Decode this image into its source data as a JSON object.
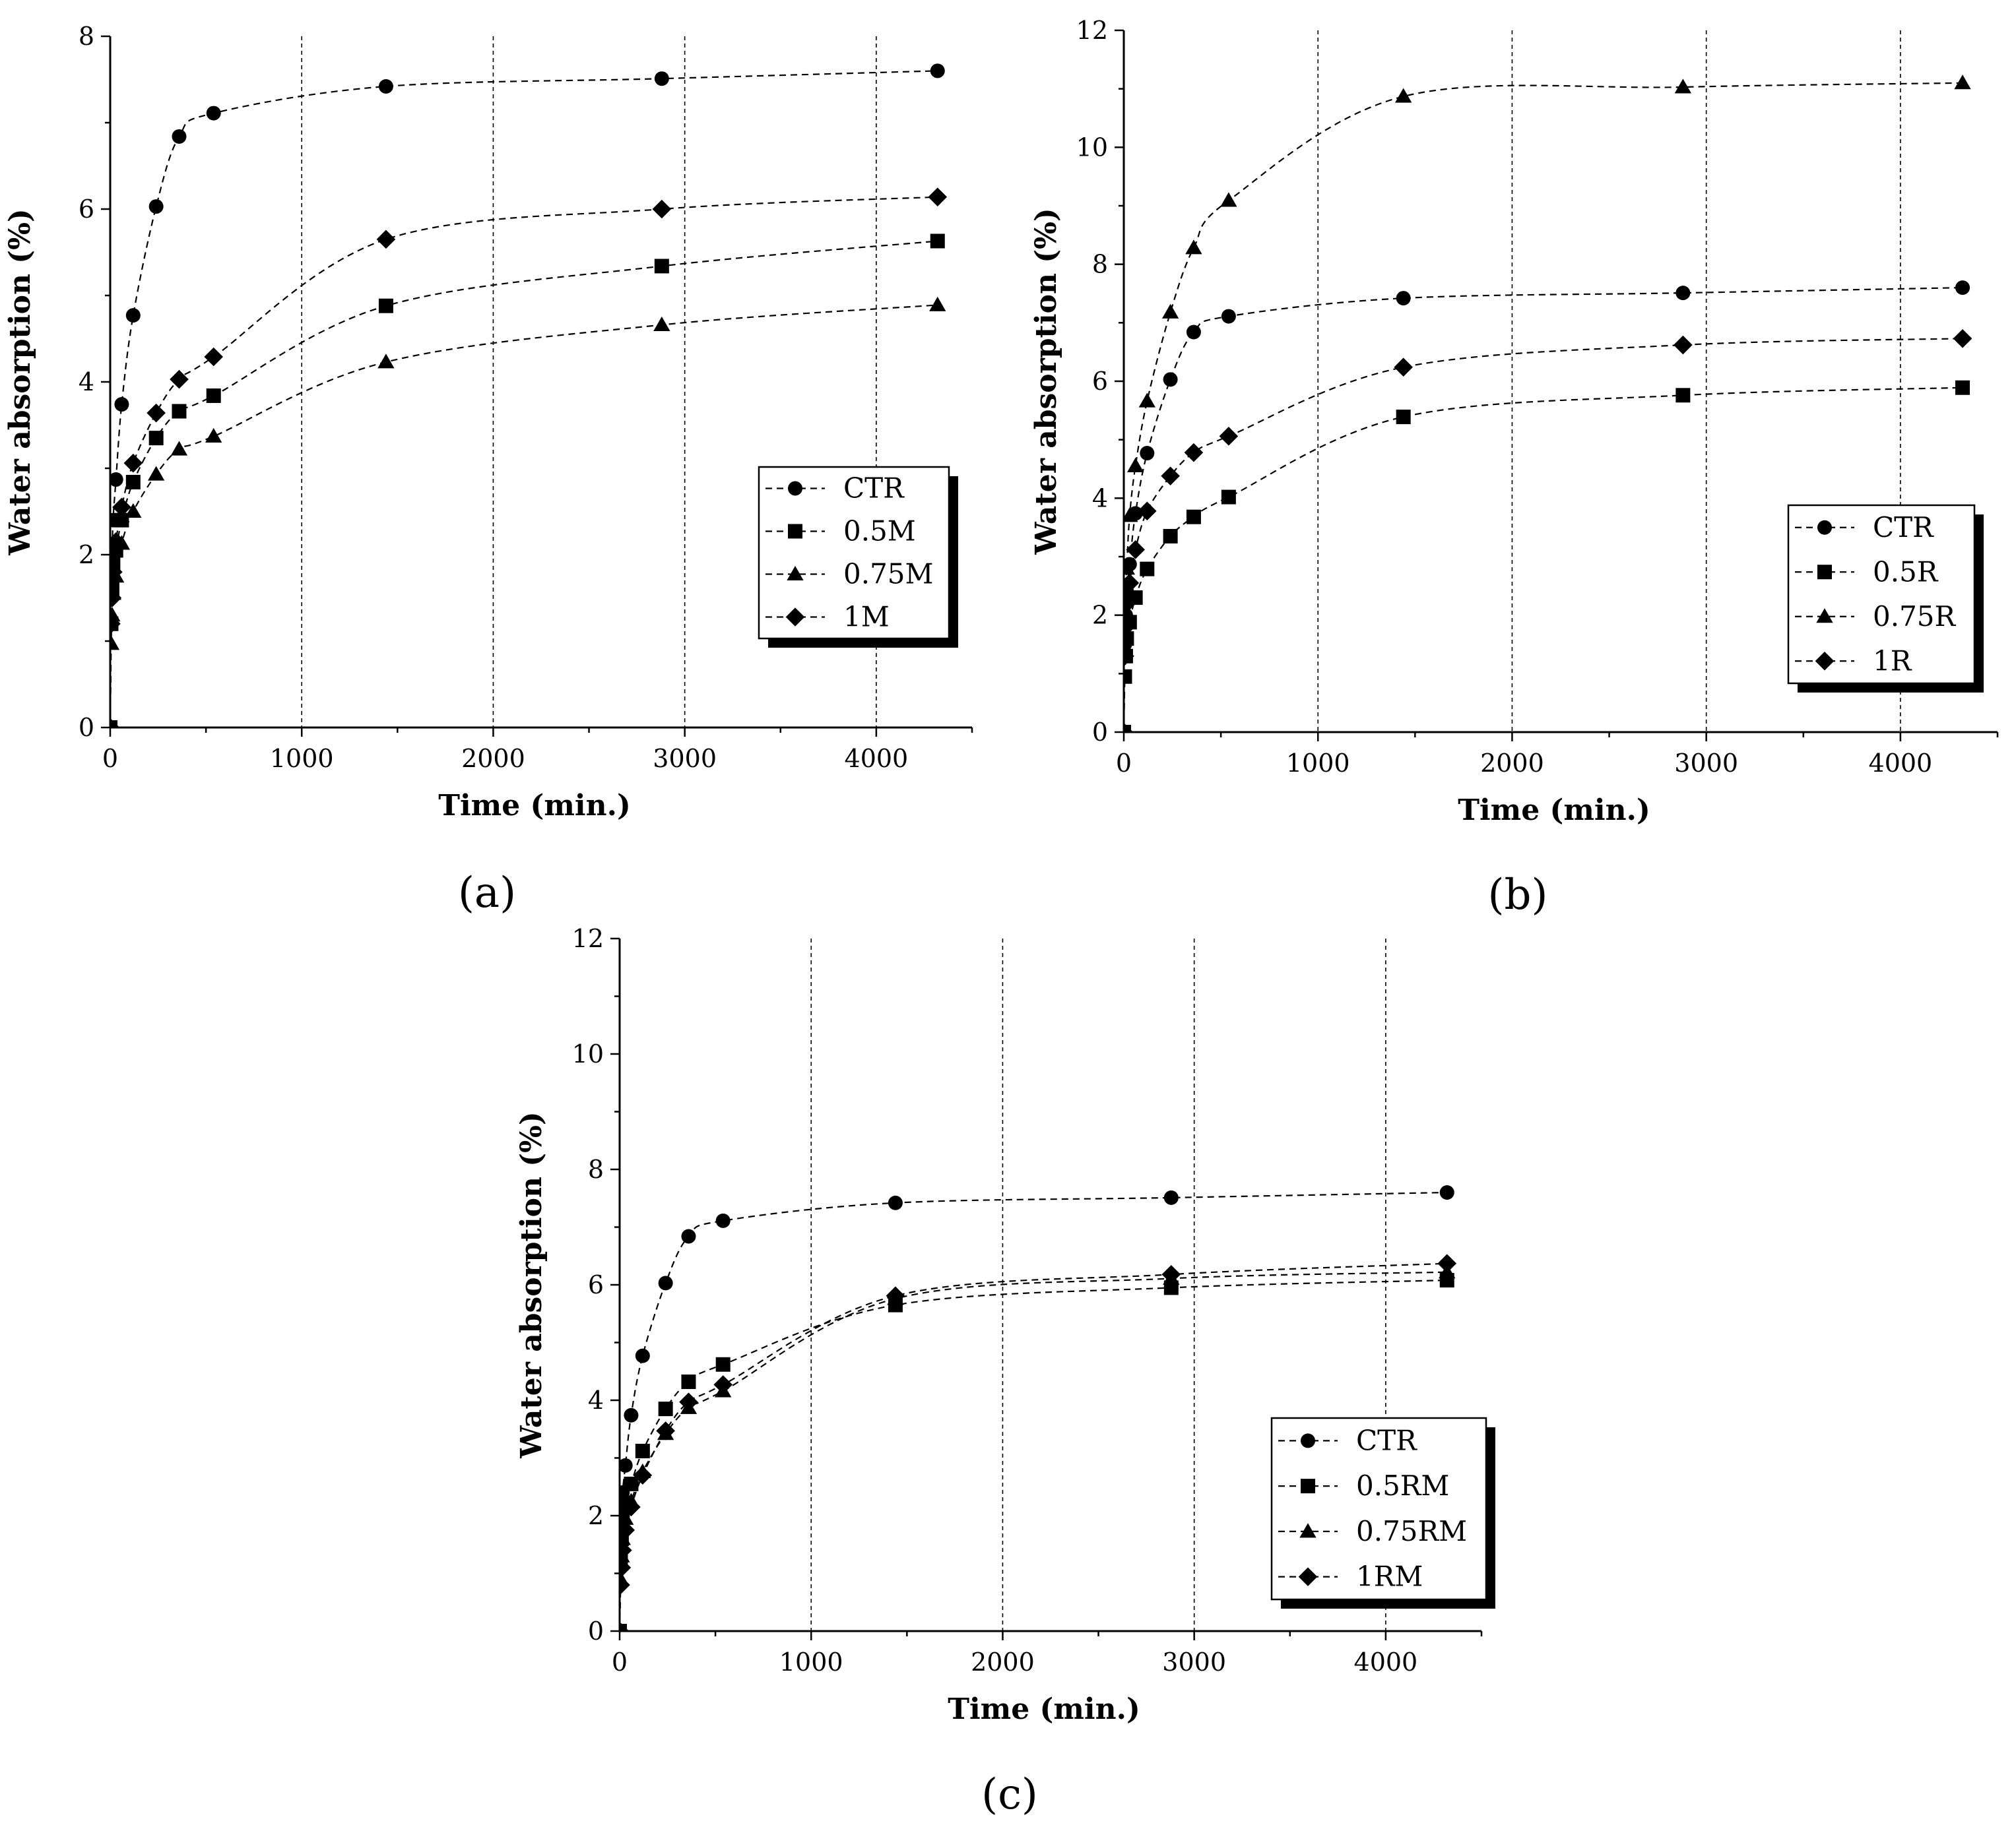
{
  "chart_data": [
    {
      "type": "line",
      "panel_label": "(a)",
      "xlabel": "Time (min.)",
      "ylabel": "Water absorption (%)",
      "xlim": [
        0,
        4500
      ],
      "ylim": [
        0,
        8
      ],
      "xticks": [
        "0",
        "1000",
        "2000",
        "3000",
        "4000"
      ],
      "yticks": [
        "0",
        "2",
        "4",
        "6",
        "8"
      ],
      "ytick_values": [
        0,
        2,
        4,
        6,
        8
      ],
      "grid": "vertical dashed at 1000, 2000, 3000, 4000",
      "legend_position": "lower-right",
      "x": [
        0,
        5,
        10,
        15,
        30,
        60,
        120,
        240,
        360,
        540,
        1440,
        2880,
        4320
      ],
      "series": [
        {
          "name": "CTR",
          "marker": "circle",
          "values": [
            0,
            1.5,
            2.0,
            2.4,
            2.87,
            3.74,
            4.77,
            6.03,
            6.84,
            7.11,
            7.42,
            7.51,
            7.6
          ]
        },
        {
          "name": "0.5M",
          "marker": "square",
          "values": [
            0,
            1.2,
            1.6,
            1.9,
            2.05,
            2.4,
            2.84,
            3.35,
            3.66,
            3.84,
            4.88,
            5.34,
            5.63
          ]
        },
        {
          "name": "0.75M",
          "marker": "triangle",
          "values": [
            0,
            0.97,
            1.3,
            1.55,
            1.75,
            2.13,
            2.5,
            2.93,
            3.22,
            3.37,
            4.23,
            4.66,
            4.89
          ]
        },
        {
          "name": "1M",
          "marker": "diamond",
          "values": [
            0,
            1.2,
            1.5,
            1.8,
            2.15,
            2.55,
            3.06,
            3.64,
            4.03,
            4.29,
            5.65,
            6.0,
            6.14
          ]
        }
      ]
    },
    {
      "type": "line",
      "panel_label": "(b)",
      "xlabel": "Time (min.)",
      "ylabel": "Water absorption (%)",
      "xlim": [
        0,
        4500
      ],
      "ylim": [
        0,
        12
      ],
      "xticks": [
        "0",
        "1000",
        "2000",
        "3000",
        "4000"
      ],
      "yticks": [
        "0",
        "2",
        "4",
        "6",
        "8",
        "10",
        "12"
      ],
      "ytick_values": [
        0,
        2,
        4,
        6,
        8,
        10,
        12
      ],
      "grid": "vertical dashed at 1000, 2000, 3000, 4000",
      "legend_position": "lower-right",
      "x": [
        0,
        5,
        10,
        15,
        30,
        60,
        120,
        240,
        360,
        540,
        1440,
        2880,
        4320
      ],
      "series": [
        {
          "name": "CTR",
          "marker": "circle",
          "values": [
            0,
            1.5,
            2.0,
            2.4,
            2.87,
            3.74,
            4.77,
            6.03,
            6.84,
            7.11,
            7.42,
            7.51,
            7.6
          ]
        },
        {
          "name": "0.5R",
          "marker": "square",
          "values": [
            0,
            0.95,
            1.3,
            1.6,
            1.88,
            2.3,
            2.79,
            3.35,
            3.68,
            4.02,
            5.39,
            5.76,
            5.89
          ]
        },
        {
          "name": "0.75R",
          "marker": "triangle",
          "values": [
            0,
            1.6,
            2.3,
            2.8,
            3.7,
            4.55,
            5.66,
            7.18,
            8.28,
            9.09,
            10.87,
            11.03,
            11.1
          ]
        },
        {
          "name": "1R",
          "marker": "diamond",
          "values": [
            0,
            1.3,
            1.8,
            2.2,
            2.55,
            3.12,
            3.78,
            4.38,
            4.78,
            5.06,
            6.24,
            6.62,
            6.73
          ]
        }
      ]
    },
    {
      "type": "line",
      "panel_label": "(c)",
      "xlabel": "Time (min.)",
      "ylabel": "Water absorption (%)",
      "xlim": [
        0,
        4500
      ],
      "ylim": [
        0,
        12
      ],
      "xticks": [
        "0",
        "1000",
        "2000",
        "3000",
        "4000"
      ],
      "yticks": [
        "0",
        "2",
        "4",
        "6",
        "8",
        "10",
        "12"
      ],
      "ytick_values": [
        0,
        2,
        4,
        6,
        8,
        10,
        12
      ],
      "grid": "vertical dashed at 1000, 2000, 3000, 4000",
      "legend_position": "lower-right",
      "x": [
        0,
        5,
        10,
        15,
        30,
        60,
        120,
        240,
        360,
        540,
        1440,
        2880,
        4320
      ],
      "series": [
        {
          "name": "CTR",
          "marker": "circle",
          "values": [
            0,
            1.5,
            2.0,
            2.4,
            2.87,
            3.74,
            4.77,
            6.03,
            6.84,
            7.11,
            7.42,
            7.51,
            7.6
          ]
        },
        {
          "name": "0.5RM",
          "marker": "square",
          "values": [
            0,
            1.2,
            1.6,
            1.95,
            2.22,
            2.55,
            3.12,
            3.85,
            4.32,
            4.62,
            5.65,
            5.95,
            6.08
          ]
        },
        {
          "name": "0.75RM",
          "marker": "triangle",
          "values": [
            0,
            0.9,
            1.3,
            1.6,
            1.95,
            2.25,
            2.76,
            3.42,
            3.87,
            4.16,
            5.76,
            6.11,
            6.22
          ]
        },
        {
          "name": "1RM",
          "marker": "diamond",
          "values": [
            0,
            0.8,
            1.1,
            1.4,
            1.75,
            2.15,
            2.7,
            3.47,
            3.97,
            4.27,
            5.81,
            6.18,
            6.37
          ]
        }
      ]
    }
  ]
}
